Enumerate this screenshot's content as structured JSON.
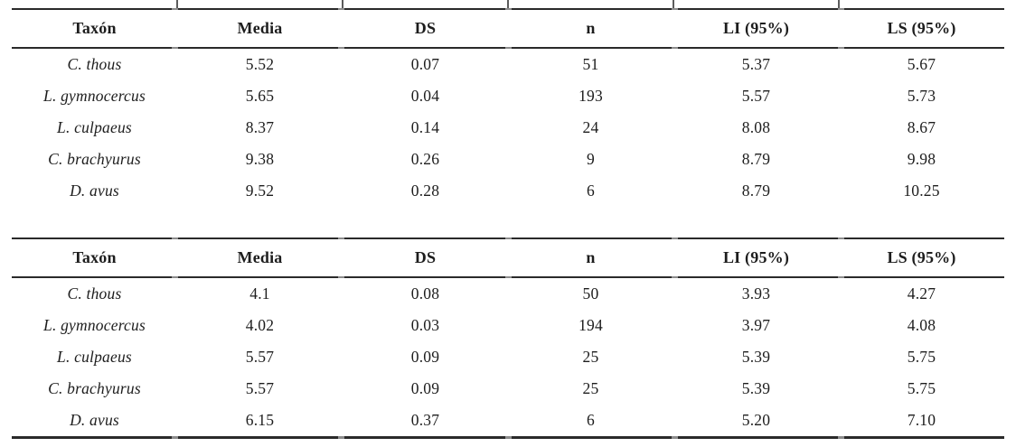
{
  "colors": {
    "background": "#ffffff",
    "text": "#1d1d1d",
    "rule_dark": "#2a2a2a",
    "rule_joint": "#8c8c8c"
  },
  "tables": [
    {
      "title": "upper-measurement-table",
      "columns": [
        "Taxón",
        "Media",
        "DS",
        "n",
        "LI (95%)",
        "LS (95%)"
      ],
      "rows": [
        [
          "C. thous",
          "5.52",
          "0.07",
          "51",
          "5.37",
          "5.67"
        ],
        [
          "L. gymnocercus",
          "5.65",
          "0.04",
          "193",
          "5.57",
          "5.73"
        ],
        [
          "L. culpaeus",
          "8.37",
          "0.14",
          "24",
          "8.08",
          "8.67"
        ],
        [
          "C. brachyurus",
          "9.38",
          "0.26",
          "9",
          "8.79",
          "9.98"
        ],
        [
          "D. avus",
          "9.52",
          "0.28",
          "6",
          "8.79",
          "10.25"
        ]
      ]
    },
    {
      "title": "lower-measurement-table",
      "columns": [
        "Taxón",
        "Media",
        "DS",
        "n",
        "LI (95%)",
        "LS (95%)"
      ],
      "rows": [
        [
          "C. thous",
          "4.1",
          "0.08",
          "50",
          "3.93",
          "4.27"
        ],
        [
          "L. gymnocercus",
          "4.02",
          "0.03",
          "194",
          "3.97",
          "4.08"
        ],
        [
          "L. culpaeus",
          "5.57",
          "0.09",
          "25",
          "5.39",
          "5.75"
        ],
        [
          "C. brachyurus",
          "5.57",
          "0.09",
          "25",
          "5.39",
          "5.75"
        ],
        [
          "D. avus",
          "6.15",
          "0.37",
          "6",
          "5.20",
          "7.10"
        ]
      ]
    }
  ]
}
